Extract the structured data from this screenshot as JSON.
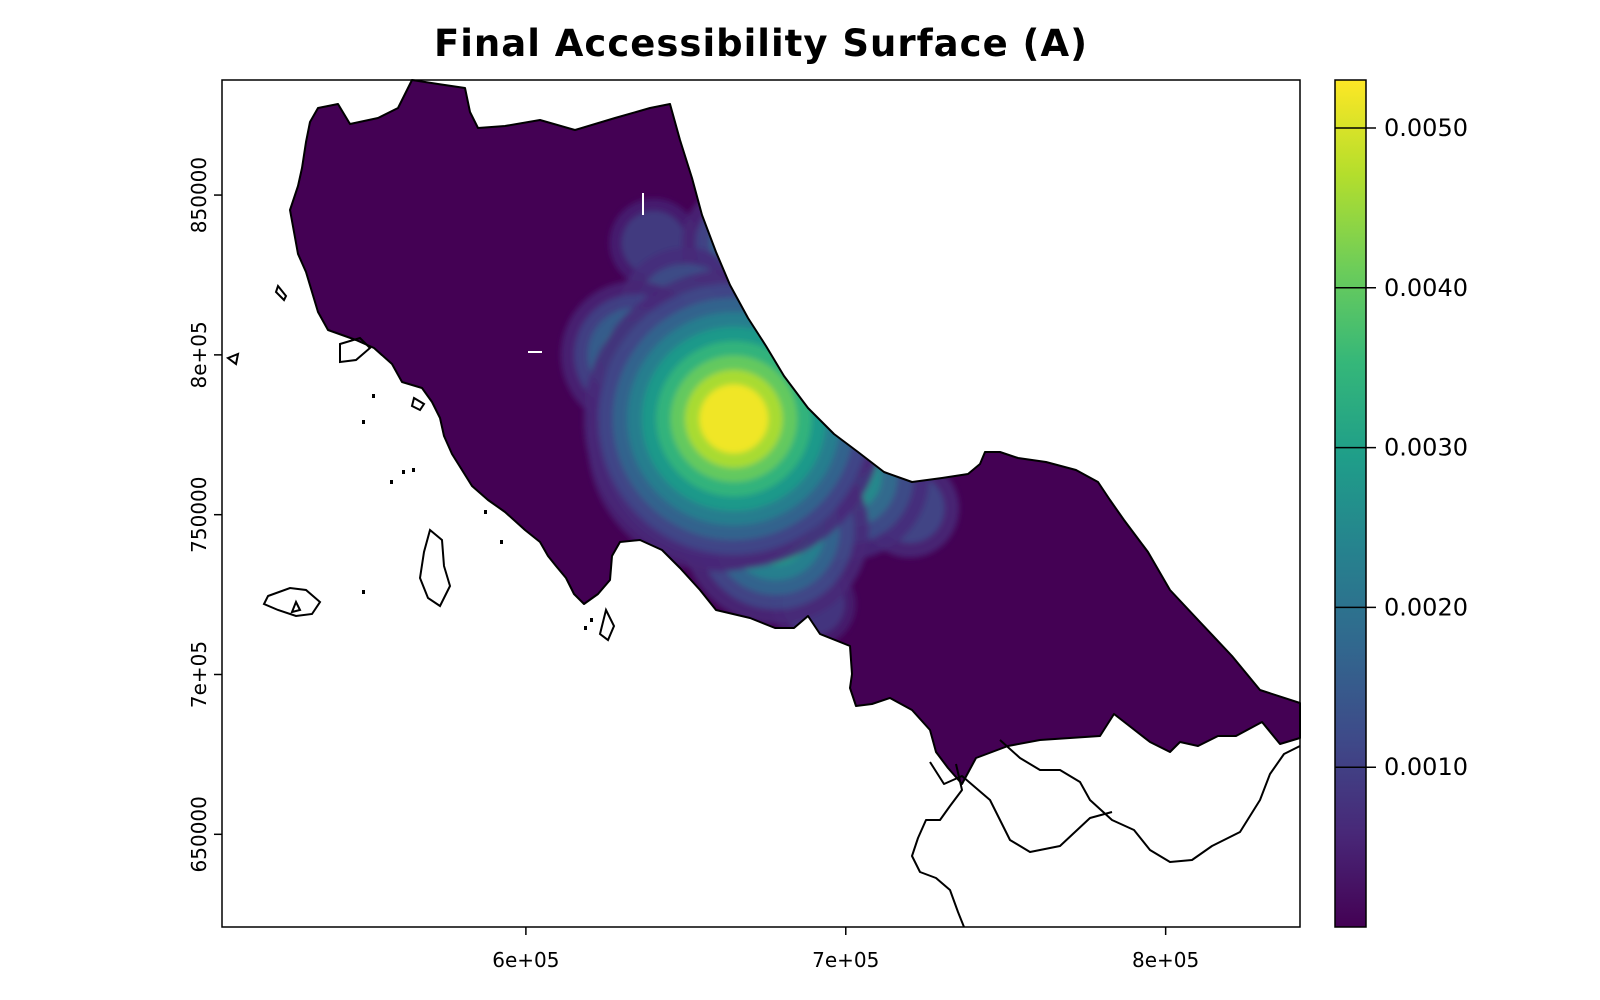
{
  "title": "Final Accessibility Surface (A)",
  "chart_data": {
    "type": "heatmap",
    "title": "Final Accessibility Surface (A)",
    "xlabel": "",
    "ylabel": "",
    "x_ticks": [
      {
        "value": 600000,
        "label": "6e+05"
      },
      {
        "value": 700000,
        "label": "7e+05"
      },
      {
        "value": 800000,
        "label": "8e+05"
      }
    ],
    "y_ticks": [
      {
        "value": 650000,
        "label": "650000"
      },
      {
        "value": 700000,
        "label": "7e+05"
      },
      {
        "value": 750000,
        "label": "750000"
      },
      {
        "value": 800000,
        "label": "8e+05"
      },
      {
        "value": 850000,
        "label": "850000"
      }
    ],
    "xlim": [
      505000,
      842000
    ],
    "ylim": [
      621000,
      886000
    ],
    "colorbar": {
      "palette": "viridis",
      "range": [
        0.0,
        0.0053
      ],
      "ticks": [
        {
          "value": 0.001,
          "label": "0.0010"
        },
        {
          "value": 0.002,
          "label": "0.0020"
        },
        {
          "value": 0.003,
          "label": "0.0030"
        },
        {
          "value": 0.004,
          "label": "0.0040"
        },
        {
          "value": 0.005,
          "label": "0.0050"
        }
      ]
    },
    "hotspots": [
      {
        "x": 665000,
        "y": 780000,
        "value": 0.0053
      },
      {
        "x": 660000,
        "y": 773000,
        "value": 0.0045
      },
      {
        "x": 683000,
        "y": 790000,
        "value": 0.0038
      },
      {
        "x": 678000,
        "y": 745000,
        "value": 0.003
      },
      {
        "x": 700000,
        "y": 762000,
        "value": 0.0026
      },
      {
        "x": 650000,
        "y": 812000,
        "value": 0.002
      },
      {
        "x": 634000,
        "y": 800000,
        "value": 0.0022
      },
      {
        "x": 668000,
        "y": 835000,
        "value": 0.0017
      },
      {
        "x": 640000,
        "y": 835000,
        "value": 0.001
      },
      {
        "x": 720000,
        "y": 752000,
        "value": 0.0012
      },
      {
        "x": 690000,
        "y": 722000,
        "value": 0.0009
      }
    ],
    "colors": {
      "low": "#440154",
      "mid": "#21908C",
      "high": "#FDE725",
      "outline": "#000000",
      "frame": "#000000"
    }
  }
}
